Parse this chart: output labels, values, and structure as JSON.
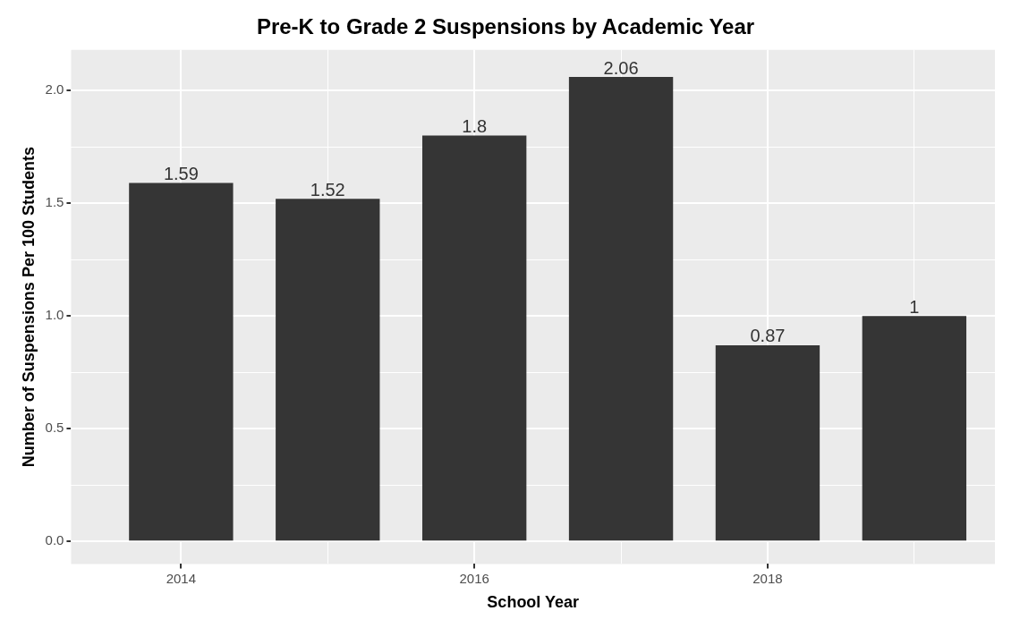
{
  "chart_data": {
    "type": "bar",
    "title": "Pre-K to Grade 2 Suspensions by Academic Year",
    "xlabel": "School Year",
    "ylabel": "Number of Suspensions Per 100 Students",
    "x": [
      2014,
      2015,
      2016,
      2017,
      2018,
      2019
    ],
    "values": [
      1.59,
      1.52,
      1.8,
      2.06,
      0.87,
      1
    ],
    "color": "#353535",
    "xlim": [
      2013.25,
      2019.55
    ],
    "xticks": [
      2014,
      {
        "value": 2015,
        "label": null
      },
      2016,
      {
        "value": 2017,
        "label": null
      },
      2018,
      {
        "value": 2019,
        "label": null
      }
    ],
    "ylim": [
      -0.1,
      2.18
    ],
    "yticks": [
      {
        "value": 0,
        "label": "0.0"
      },
      {
        "value": 0.25,
        "label": null
      },
      {
        "value": 0.5,
        "label": "0.5"
      },
      {
        "value": 0.75,
        "label": null
      },
      {
        "value": 1,
        "label": "1.0"
      },
      {
        "value": 1.25,
        "label": null
      },
      {
        "value": 1.5,
        "label": "1.5"
      },
      {
        "value": 1.75,
        "label": null
      },
      {
        "value": 2,
        "label": "2.0"
      }
    ],
    "grid": true,
    "data_labels": true
  }
}
